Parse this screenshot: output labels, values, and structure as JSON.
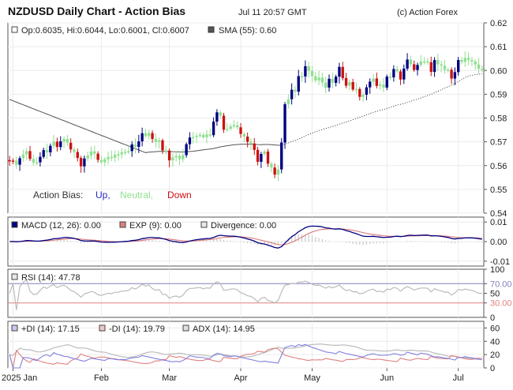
{
  "header": {
    "title": "NZDUSD Daily Chart - Action Bias",
    "timestamp": "Jul 11 20:57 GMT",
    "credit": "(c) Action Forex"
  },
  "colors": {
    "up": "#000080",
    "neutral": "#90e090",
    "down": "#cc1111",
    "sma": "#555555",
    "macd": "#000080",
    "exp": "#e08080",
    "divergence": "#c8c8c8",
    "rsi": "#bbbbbb",
    "rsi_upper": "#8080c0",
    "rsi_lower": "#e08080",
    "plus_di": "#8080e0",
    "minus_di": "#e08080",
    "adx": "#bbbbbb"
  },
  "chart_data": [
    {
      "type": "candlestick",
      "panel": "price",
      "ohlc_readout": "Op:0.6035, Hi:0.6044, Lo:0.6001, Cl:0.6007",
      "sma_label": "SMA (55): 0.60",
      "legend": {
        "prefix": "Action Bias:",
        "up": "Up,",
        "neutral": "Neutral,",
        "down": "Down"
      },
      "yticks": [
        "0.62",
        "0.61",
        "0.60",
        "0.59",
        "0.58",
        "0.57",
        "0.56",
        "0.55",
        "0.54"
      ],
      "ylim": [
        0.54,
        0.62
      ],
      "xticks": [
        "2025 Jan",
        "Feb",
        "Mar",
        "Apr",
        "May",
        "Jun",
        "Jul"
      ],
      "xtick_index": [
        1,
        27,
        47,
        68,
        89,
        111,
        132
      ],
      "x_count": 140,
      "close_series": [
        0.5618,
        0.5621,
        0.5604,
        0.5631,
        0.5647,
        0.5661,
        0.5628,
        0.5612,
        0.5614,
        0.5637,
        0.5665,
        0.5656,
        0.5683,
        0.5701,
        0.5678,
        0.5702,
        0.5712,
        0.5696,
        0.5668,
        0.5657,
        0.5632,
        0.5597,
        0.563,
        0.5642,
        0.566,
        0.565,
        0.5624,
        0.5614,
        0.5627,
        0.5636,
        0.5633,
        0.5646,
        0.5647,
        0.5656,
        0.5658,
        0.5661,
        0.5689,
        0.5679,
        0.5702,
        0.5736,
        0.5724,
        0.5737,
        0.5712,
        0.5699,
        0.5706,
        0.5664,
        0.5663,
        0.5622,
        0.5635,
        0.5641,
        0.5627,
        0.5644,
        0.569,
        0.5718,
        0.572,
        0.5725,
        0.5729,
        0.5719,
        0.5731,
        0.5728,
        0.5785,
        0.5824,
        0.581,
        0.5751,
        0.5754,
        0.5765,
        0.577,
        0.5761,
        0.5733,
        0.5722,
        0.57,
        0.5693,
        0.5666,
        0.5616,
        0.5649,
        0.5659,
        0.5608,
        0.5592,
        0.5562,
        0.5584,
        0.5697,
        0.5858,
        0.5879,
        0.5919,
        0.5911,
        0.5976,
        0.5975,
        0.6018,
        0.5998,
        0.5976,
        0.5958,
        0.597,
        0.5949,
        0.5928,
        0.5965,
        0.5948,
        0.5974,
        0.6015,
        0.5968,
        0.5936,
        0.5951,
        0.592,
        0.5922,
        0.5889,
        0.5898,
        0.5929,
        0.5953,
        0.5966,
        0.5935,
        0.5941,
        0.5928,
        0.5974,
        0.5971,
        0.6006,
        0.5996,
        0.5962,
        0.6008,
        0.6046,
        0.6026,
        0.6002,
        0.6023,
        0.6038,
        0.6038,
        0.6035,
        0.5994,
        0.6044,
        0.6026,
        0.602,
        0.6003,
        0.6003,
        0.5966,
        0.5993,
        0.6044,
        0.6036,
        0.6053,
        0.6044,
        0.6038,
        0.6025,
        0.6007,
        0.6007
      ]
    },
    {
      "type": "line",
      "panel": "macd",
      "labels": [
        "MACD (12, 26): 0.00",
        "EXP (9): 0.00",
        "Divergence: 0.00"
      ],
      "yticks": [
        "0.01",
        "0.00",
        "-0.01"
      ],
      "ylim": [
        -0.0125,
        0.0125
      ]
    },
    {
      "type": "line",
      "panel": "rsi",
      "label": "RSI (14): 47.78",
      "yticks": [
        "100",
        "70.00",
        "50",
        "30.00",
        "0"
      ],
      "ylim": [
        0,
        100
      ],
      "levels": [
        70,
        30
      ]
    },
    {
      "type": "line",
      "panel": "dmi",
      "labels": [
        "+DI (14): 17.15",
        "-DI (14): 19.79",
        "ADX (14): 14.95"
      ],
      "yticks": [
        "60",
        "40",
        "20",
        "0"
      ],
      "ylim": [
        0,
        70
      ]
    }
  ]
}
